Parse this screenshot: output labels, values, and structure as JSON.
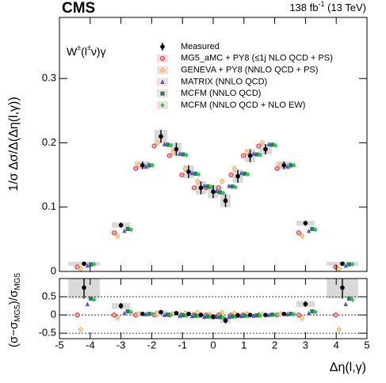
{
  "chart_data": [
    {
      "type": "scatter",
      "title": "CMS",
      "lumi": [
        "138 fb",
        "-1",
        " (13 TeV)"
      ],
      "process": [
        "W",
        "±",
        "(l",
        "±",
        "ν)γ"
      ],
      "ylabel": "1/σ  Δσ/Δ(Δη(l,γ))",
      "x": [
        -4.2,
        -3.0,
        -2.3,
        -1.7,
        -1.2,
        -0.8,
        -0.4,
        0,
        0.4,
        0.8,
        1.2,
        1.7,
        2.3,
        3.0,
        4.2
      ],
      "xlim": [
        -5,
        5
      ],
      "ylim": [
        0,
        0.395
      ],
      "yticks": [
        0,
        0.1,
        0.2,
        0.3
      ],
      "measured": {
        "name": "Measured",
        "color": "#000000",
        "values": [
          0.012,
          0.072,
          0.165,
          0.21,
          0.19,
          0.155,
          0.13,
          0.124,
          0.11,
          0.148,
          0.18,
          0.19,
          0.165,
          0.075,
          0.012
        ],
        "errors": [
          0.003,
          0.004,
          0.006,
          0.01,
          0.01,
          0.01,
          0.01,
          0.01,
          0.01,
          0.01,
          0.01,
          0.008,
          0.006,
          0.004,
          0.003
        ]
      },
      "series": [
        {
          "name": "MG5_aMC + PY8 (≤1j NLO QCD + PS)",
          "color": "#e8323c",
          "marker": "circle",
          "values": [
            0.007,
            0.06,
            0.16,
            0.195,
            0.18,
            0.15,
            0.13,
            0.13,
            0.13,
            0.15,
            0.18,
            0.195,
            0.16,
            0.06,
            0.007
          ]
        },
        {
          "name": "GENEVA + PY8 (NNLO QCD + PS)",
          "color": "#ffa64d",
          "marker": "diamond-open",
          "values": [
            0.004,
            0.055,
            0.165,
            0.2,
            0.185,
            0.16,
            0.14,
            0.132,
            0.14,
            0.16,
            0.185,
            0.2,
            0.165,
            0.055,
            0.004
          ]
        },
        {
          "name": "MATRIX (NNLO QCD)",
          "color": "#4f4fe0",
          "marker": "triangle",
          "values": [
            0.009,
            0.063,
            0.163,
            0.198,
            0.183,
            0.153,
            0.133,
            0.125,
            0.133,
            0.153,
            0.183,
            0.198,
            0.163,
            0.063,
            0.009
          ]
        },
        {
          "name": "MCFM (NNLO QCD)",
          "color": "#2e7d4f",
          "marker": "square",
          "values": [
            0.011,
            0.066,
            0.165,
            0.197,
            0.182,
            0.152,
            0.132,
            0.123,
            0.132,
            0.152,
            0.182,
            0.197,
            0.165,
            0.066,
            0.011
          ]
        },
        {
          "name": "MCFM (NNLO QCD + NLO EW)",
          "color": "#22c55e",
          "marker": "diamond",
          "values": [
            0.011,
            0.065,
            0.165,
            0.196,
            0.181,
            0.151,
            0.131,
            0.122,
            0.131,
            0.151,
            0.181,
            0.196,
            0.165,
            0.065,
            0.011
          ]
        }
      ]
    },
    {
      "type": "scatter",
      "ylabel": [
        "(σ−σ",
        "MG5",
        ")/σ",
        "MG5"
      ],
      "xlabel": "Δη(l,γ)",
      "x": [
        -4.2,
        -3.0,
        -2.3,
        -1.7,
        -1.2,
        -0.8,
        -0.4,
        0,
        0.4,
        0.8,
        1.2,
        1.7,
        2.3,
        3.0,
        4.2
      ],
      "xlim": [
        -5,
        5
      ],
      "xticks": [
        -5,
        -4,
        -3,
        -2,
        -1,
        0,
        1,
        2,
        3,
        4,
        5
      ],
      "ylim": [
        -0.65,
        1
      ],
      "yticks": [
        -0.5,
        0,
        0.5
      ],
      "measured": {
        "color": "#000000",
        "values": [
          0.75,
          0.25,
          0.03,
          0.08,
          0.05,
          0.03,
          0,
          -0.05,
          -0.15,
          -0.01,
          0,
          0,
          0.03,
          0.3,
          0.75
        ],
        "errors": [
          0.3,
          0.08,
          0.04,
          0.05,
          0.05,
          0.06,
          0.07,
          0.07,
          0.08,
          0.07,
          0.05,
          0.04,
          0.04,
          0.08,
          0.3
        ]
      },
      "series": [
        {
          "color": "#e8323c",
          "marker": "circle",
          "values": [
            0,
            0,
            0,
            0,
            0,
            0,
            0,
            0,
            0,
            0,
            0,
            0,
            0,
            0,
            0
          ]
        },
        {
          "color": "#ffa64d",
          "marker": "diamond-open",
          "values": [
            -0.4,
            -0.08,
            0.03,
            0.02,
            0.03,
            0.05,
            0.07,
            0.02,
            0.07,
            0.05,
            0.03,
            0.02,
            0.03,
            -0.08,
            -0.4
          ]
        },
        {
          "color": "#4f4fe0",
          "marker": "triangle",
          "values": [
            0.3,
            0.05,
            0.02,
            0,
            -0.02,
            -0.03,
            -0.05,
            -0.05,
            -0.05,
            -0.03,
            -0.02,
            0,
            0.02,
            0.05,
            0.3
          ]
        },
        {
          "color": "#2e7d4f",
          "marker": "square",
          "values": [
            0.45,
            0.1,
            0.03,
            0.01,
            -0.01,
            -0.02,
            -0.04,
            -0.06,
            -0.04,
            -0.02,
            -0.01,
            0.01,
            0.03,
            0.1,
            0.45
          ]
        },
        {
          "color": "#22c55e",
          "marker": "diamond",
          "values": [
            0.42,
            0.08,
            0.02,
            0,
            -0.02,
            -0.03,
            -0.05,
            -0.07,
            -0.05,
            -0.03,
            -0.02,
            0,
            0.02,
            0.08,
            0.42
          ]
        }
      ]
    }
  ]
}
